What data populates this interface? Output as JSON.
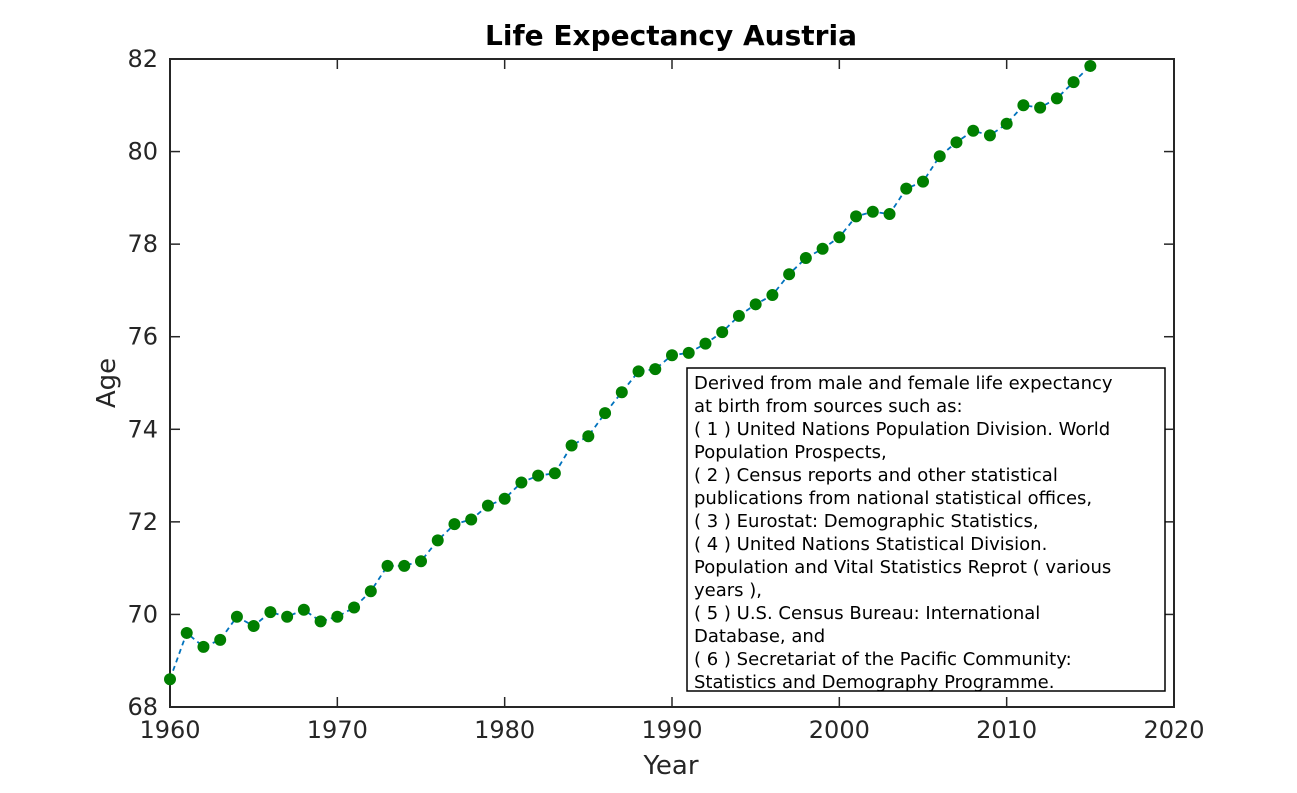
{
  "chart_data": {
    "type": "line",
    "title": "Life Expectancy Austria",
    "xlabel": "Year",
    "ylabel": "Age",
    "xlim": [
      1960,
      2020
    ],
    "ylim": [
      68,
      82
    ],
    "xticks": [
      "1960",
      "1970",
      "1980",
      "1990",
      "2000",
      "2010",
      "2020"
    ],
    "yticks": [
      "68",
      "70",
      "72",
      "74",
      "76",
      "78",
      "80",
      "82"
    ],
    "grid": false,
    "line_color": "#0072bd",
    "marker_color": "#007f00",
    "line_style": "dashed",
    "series": [
      {
        "x": [
          1960,
          1961,
          1962,
          1963,
          1964,
          1965,
          1966,
          1967,
          1968,
          1969,
          1970,
          1971,
          1972,
          1973,
          1974,
          1975,
          1976,
          1977,
          1978,
          1979,
          1980,
          1981,
          1982,
          1983,
          1984,
          1985,
          1986,
          1987,
          1988,
          1989,
          1990,
          1991,
          1992,
          1993,
          1994,
          1995,
          1996,
          1997,
          1998,
          1999,
          2000,
          2001,
          2002,
          2003,
          2004,
          2005,
          2006,
          2007,
          2008,
          2009,
          2010,
          2011,
          2012,
          2013,
          2014,
          2015
        ],
        "y": [
          68.6,
          69.6,
          69.3,
          69.45,
          69.95,
          69.75,
          70.05,
          69.95,
          70.1,
          69.85,
          69.95,
          70.15,
          70.5,
          71.05,
          71.05,
          71.15,
          71.6,
          71.95,
          72.05,
          72.35,
          72.5,
          72.85,
          73.0,
          73.05,
          73.65,
          73.85,
          74.35,
          74.8,
          75.25,
          75.3,
          75.6,
          75.65,
          75.85,
          76.1,
          76.45,
          76.7,
          76.9,
          77.35,
          77.7,
          77.9,
          78.15,
          78.6,
          78.7,
          78.65,
          79.2,
          79.35,
          79.9,
          80.2,
          80.45,
          80.35,
          80.6,
          81.0,
          80.95,
          81.15,
          81.5,
          81.85
        ]
      }
    ],
    "annotation": {
      "lines": [
        "Derived from male and female life expectancy",
        " at birth from sources such as:",
        "( 1 ) United Nations Population Division. World",
        "Population Prospects,",
        "( 2 ) Census reports and other statistical",
        "publications from national statistical offices,",
        "( 3 ) Eurostat: Demographic Statistics,",
        "( 4 ) United Nations Statistical Division.",
        "Population and Vital Statistics Reprot ( various",
        "years ),",
        "( 5 ) U.S. Census Bureau: International",
        "Database, and",
        "( 6 ) Secretariat of the Pacific Community:",
        "Statistics and Demography Programme."
      ],
      "placement": "bottom-right"
    }
  }
}
